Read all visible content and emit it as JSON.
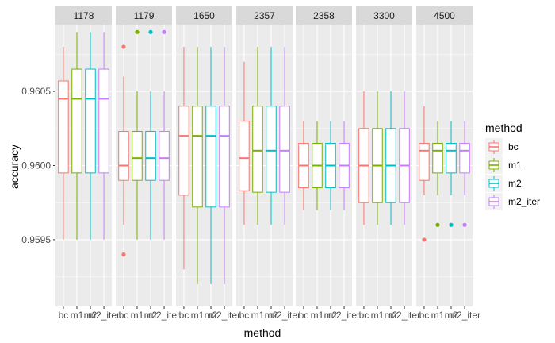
{
  "chart_data": {
    "type": "boxplot",
    "facet_variable": "id",
    "panels": [
      "1178",
      "1179",
      "1650",
      "2357",
      "2358",
      "3300",
      "4500"
    ],
    "categories": [
      "bc",
      "m1",
      "m2",
      "m2_iter"
    ],
    "xlabel": "method",
    "ylabel": "accuracy",
    "y_ticks": [
      "0.9595",
      "0.9600",
      "0.9605"
    ],
    "ylim": [
      0.95905,
      0.96095
    ],
    "grid": true,
    "legend": {
      "title": "method",
      "position": "right",
      "entries": [
        "bc",
        "m1",
        "m2",
        "m2_iter"
      ]
    },
    "series": [
      {
        "category": "bc",
        "color": "#F8766D",
        "boxes": [
          {
            "panel": "1178",
            "whisker_low": 0.9595,
            "q1": 0.95995,
            "median": 0.96045,
            "q3": 0.96057,
            "whisker_high": 0.9608,
            "outliers": []
          },
          {
            "panel": "1179",
            "whisker_low": 0.9596,
            "q1": 0.9599,
            "median": 0.96,
            "q3": 0.96023,
            "whisker_high": 0.9606,
            "outliers": [
              0.9594,
              0.9608
            ]
          },
          {
            "panel": "1650",
            "whisker_low": 0.9593,
            "q1": 0.9598,
            "median": 0.9602,
            "q3": 0.9604,
            "whisker_high": 0.9608,
            "outliers": []
          },
          {
            "panel": "2357",
            "whisker_low": 0.9596,
            "q1": 0.95983,
            "median": 0.96005,
            "q3": 0.9603,
            "whisker_high": 0.9607,
            "outliers": []
          },
          {
            "panel": "2358",
            "whisker_low": 0.9597,
            "q1": 0.95985,
            "median": 0.96,
            "q3": 0.96015,
            "whisker_high": 0.9603,
            "outliers": []
          },
          {
            "panel": "3300",
            "whisker_low": 0.9596,
            "q1": 0.95975,
            "median": 0.96,
            "q3": 0.96025,
            "whisker_high": 0.9605,
            "outliers": []
          },
          {
            "panel": "4500",
            "whisker_low": 0.9598,
            "q1": 0.9599,
            "median": 0.9601,
            "q3": 0.96015,
            "whisker_high": 0.9604,
            "outliers": [
              0.9595
            ]
          }
        ]
      },
      {
        "category": "m1",
        "color": "#7CAE00",
        "boxes": [
          {
            "panel": "1178",
            "whisker_low": 0.9595,
            "q1": 0.95995,
            "median": 0.96045,
            "q3": 0.96065,
            "whisker_high": 0.9609,
            "outliers": []
          },
          {
            "panel": "1179",
            "whisker_low": 0.9595,
            "q1": 0.9599,
            "median": 0.96005,
            "q3": 0.96023,
            "whisker_high": 0.9605,
            "outliers": [
              0.9609
            ]
          },
          {
            "panel": "1650",
            "whisker_low": 0.9592,
            "q1": 0.95972,
            "median": 0.9602,
            "q3": 0.9604,
            "whisker_high": 0.9608,
            "outliers": []
          },
          {
            "panel": "2357",
            "whisker_low": 0.9596,
            "q1": 0.95982,
            "median": 0.9601,
            "q3": 0.9604,
            "whisker_high": 0.9608,
            "outliers": []
          },
          {
            "panel": "2358",
            "whisker_low": 0.9597,
            "q1": 0.95985,
            "median": 0.96,
            "q3": 0.96015,
            "whisker_high": 0.9603,
            "outliers": []
          },
          {
            "panel": "3300",
            "whisker_low": 0.9596,
            "q1": 0.95975,
            "median": 0.96,
            "q3": 0.96025,
            "whisker_high": 0.9605,
            "outliers": []
          },
          {
            "panel": "4500",
            "whisker_low": 0.9598,
            "q1": 0.95995,
            "median": 0.9601,
            "q3": 0.96015,
            "whisker_high": 0.9603,
            "outliers": [
              0.9596
            ]
          }
        ]
      },
      {
        "category": "m2",
        "color": "#00BFC4",
        "boxes": [
          {
            "panel": "1178",
            "whisker_low": 0.9595,
            "q1": 0.95995,
            "median": 0.96045,
            "q3": 0.96065,
            "whisker_high": 0.9609,
            "outliers": []
          },
          {
            "panel": "1179",
            "whisker_low": 0.9595,
            "q1": 0.9599,
            "median": 0.96005,
            "q3": 0.96023,
            "whisker_high": 0.9605,
            "outliers": [
              0.9609
            ]
          },
          {
            "panel": "1650",
            "whisker_low": 0.9592,
            "q1": 0.95972,
            "median": 0.9602,
            "q3": 0.9604,
            "whisker_high": 0.9608,
            "outliers": []
          },
          {
            "panel": "2357",
            "whisker_low": 0.9596,
            "q1": 0.95982,
            "median": 0.9601,
            "q3": 0.9604,
            "whisker_high": 0.9608,
            "outliers": []
          },
          {
            "panel": "2358",
            "whisker_low": 0.9597,
            "q1": 0.95985,
            "median": 0.96,
            "q3": 0.96015,
            "whisker_high": 0.9603,
            "outliers": []
          },
          {
            "panel": "3300",
            "whisker_low": 0.9596,
            "q1": 0.95975,
            "median": 0.96,
            "q3": 0.96025,
            "whisker_high": 0.9605,
            "outliers": []
          },
          {
            "panel": "4500",
            "whisker_low": 0.9598,
            "q1": 0.95995,
            "median": 0.9601,
            "q3": 0.96015,
            "whisker_high": 0.9603,
            "outliers": [
              0.9596
            ]
          }
        ]
      },
      {
        "category": "m2_iter",
        "color": "#C77CFF",
        "boxes": [
          {
            "panel": "1178",
            "whisker_low": 0.9595,
            "q1": 0.95995,
            "median": 0.96045,
            "q3": 0.96065,
            "whisker_high": 0.9609,
            "outliers": []
          },
          {
            "panel": "1179",
            "whisker_low": 0.9595,
            "q1": 0.9599,
            "median": 0.96005,
            "q3": 0.96023,
            "whisker_high": 0.9605,
            "outliers": [
              0.9609
            ]
          },
          {
            "panel": "1650",
            "whisker_low": 0.9592,
            "q1": 0.95972,
            "median": 0.9602,
            "q3": 0.9604,
            "whisker_high": 0.9608,
            "outliers": []
          },
          {
            "panel": "2357",
            "whisker_low": 0.9596,
            "q1": 0.95982,
            "median": 0.9601,
            "q3": 0.9604,
            "whisker_high": 0.9608,
            "outliers": []
          },
          {
            "panel": "2358",
            "whisker_low": 0.9597,
            "q1": 0.95985,
            "median": 0.96,
            "q3": 0.96015,
            "whisker_high": 0.9603,
            "outliers": []
          },
          {
            "panel": "3300",
            "whisker_low": 0.9596,
            "q1": 0.95975,
            "median": 0.96,
            "q3": 0.96025,
            "whisker_high": 0.9605,
            "outliers": []
          },
          {
            "panel": "4500",
            "whisker_low": 0.9598,
            "q1": 0.95995,
            "median": 0.9601,
            "q3": 0.96015,
            "whisker_high": 0.9603,
            "outliers": [
              0.9596
            ]
          }
        ]
      }
    ]
  }
}
